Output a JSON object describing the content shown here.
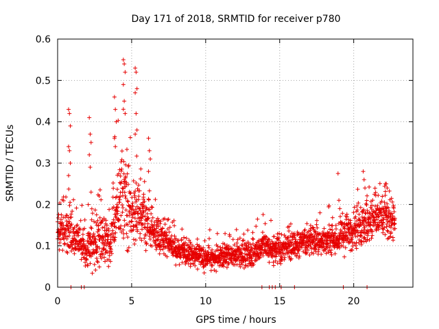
{
  "chart_data": {
    "type": "scatter",
    "title": "Day 171 of 2018, SRMTID for receiver p780",
    "xlabel": "GPS time / hours",
    "ylabel": "SRMTID / TECUs",
    "xlim": [
      0,
      24
    ],
    "ylim": [
      0,
      0.6
    ],
    "xticks": [
      0,
      5,
      10,
      15,
      20
    ],
    "xtick_labels": [
      "0",
      "5",
      "10",
      "15",
      "20"
    ],
    "yticks": [
      0,
      0.1,
      0.2,
      0.3,
      0.4,
      0.5,
      0.6
    ],
    "ytick_labels": [
      "0",
      "0.1",
      "0.2",
      "0.3",
      "0.4",
      "0.5",
      "0.6"
    ],
    "grid": true,
    "marker": "plus",
    "color": "#e60000",
    "series": [
      {
        "name": "p780 SRMTID",
        "sampling_interval_hours": 0.01,
        "envelope": {
          "description": "Dense scatter; typical (median) value and upper spread vs time",
          "hours": [
            0.0,
            0.5,
            1.0,
            1.5,
            2.0,
            2.5,
            3.0,
            3.5,
            4.0,
            4.5,
            5.0,
            5.5,
            6.0,
            6.5,
            7.0,
            8.0,
            9.0,
            10.0,
            11.0,
            12.0,
            13.0,
            14.0,
            15.0,
            16.0,
            17.0,
            18.0,
            19.0,
            20.0,
            21.0,
            22.0,
            22.8
          ],
          "median": [
            0.14,
            0.13,
            0.12,
            0.11,
            0.08,
            0.11,
            0.12,
            0.1,
            0.18,
            0.22,
            0.18,
            0.17,
            0.16,
            0.12,
            0.12,
            0.09,
            0.08,
            0.07,
            0.07,
            0.08,
            0.08,
            0.1,
            0.09,
            0.1,
            0.11,
            0.11,
            0.12,
            0.14,
            0.16,
            0.17,
            0.16
          ],
          "spread": [
            0.05,
            0.07,
            0.08,
            0.05,
            0.05,
            0.08,
            0.07,
            0.06,
            0.12,
            0.15,
            0.13,
            0.08,
            0.07,
            0.05,
            0.05,
            0.04,
            0.035,
            0.035,
            0.035,
            0.035,
            0.04,
            0.04,
            0.04,
            0.04,
            0.04,
            0.05,
            0.05,
            0.06,
            0.06,
            0.06,
            0.06
          ]
        },
        "spikes": [
          {
            "hour": 0.8,
            "values": [
              0.43,
              0.42,
              0.39,
              0.34,
              0.33,
              0.3,
              0.27
            ]
          },
          {
            "hour": 2.2,
            "values": [
              0.41,
              0.37,
              0.35,
              0.32,
              0.29,
              0.23
            ]
          },
          {
            "hour": 3.9,
            "values": [
              0.46,
              0.43,
              0.4,
              0.36,
              0.34
            ]
          },
          {
            "hour": 4.5,
            "values": [
              0.55,
              0.54,
              0.52,
              0.49,
              0.45,
              0.42
            ]
          },
          {
            "hour": 5.3,
            "values": [
              0.53,
              0.52,
              0.48,
              0.47,
              0.42,
              0.38,
              0.37
            ]
          },
          {
            "hour": 6.2,
            "values": [
              0.36,
              0.33,
              0.31,
              0.28
            ]
          },
          {
            "hour": 19.0,
            "values": [
              0.275,
              0.21,
              0.19
            ]
          },
          {
            "hour": 20.7,
            "values": [
              0.28,
              0.26,
              0.24
            ]
          },
          {
            "hour": 22.2,
            "values": [
              0.25,
              0.25,
              0.24
            ]
          }
        ],
        "zero_values_hours": [
          0.9,
          1.6,
          1.8,
          13.8,
          14.3,
          14.5,
          14.7,
          15.1,
          16.0,
          19.3,
          20.9
        ]
      }
    ]
  }
}
